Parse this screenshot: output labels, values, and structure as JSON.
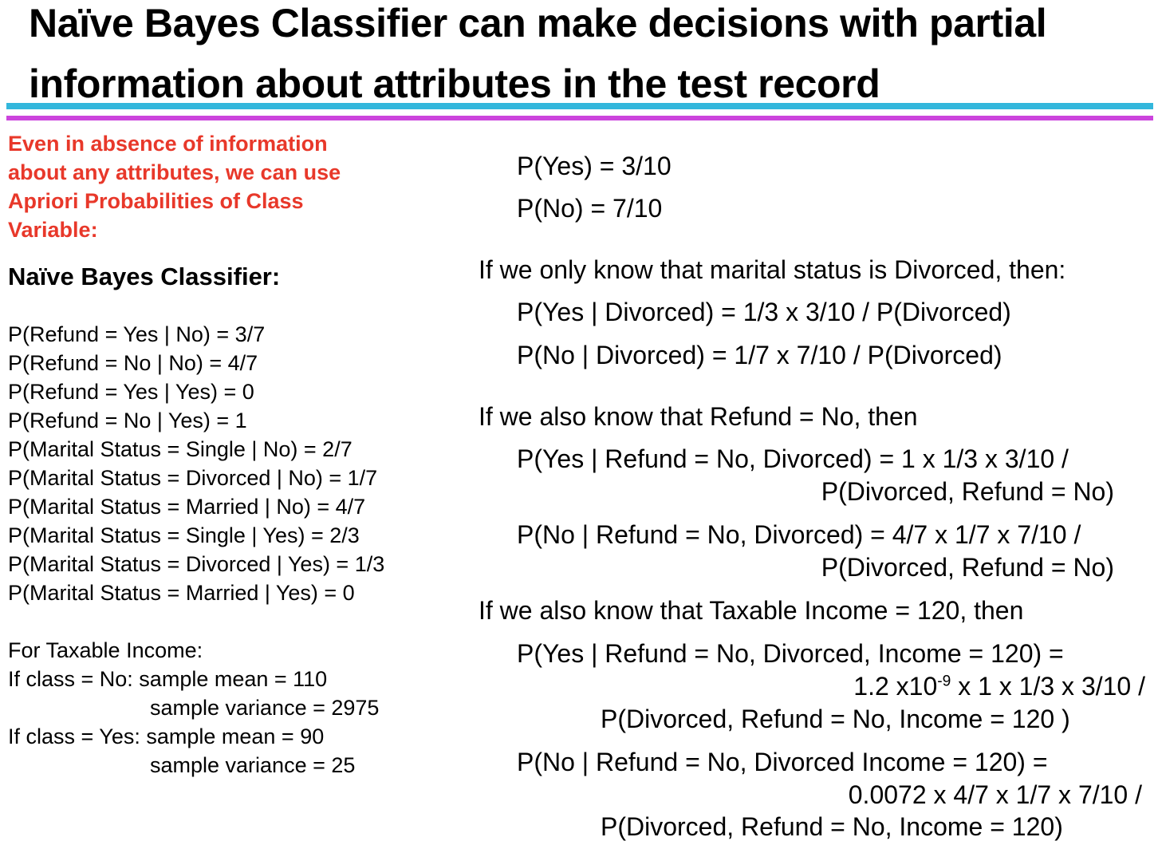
{
  "title": {
    "line1": "Naïve Bayes Classifier can make decisions with partial",
    "line2": "information about attributes in the test record"
  },
  "left": {
    "note_lines": [
      "Even in absence of information",
      "about any attributes, we can use",
      "Apriori Probabilities of Class",
      "Variable:"
    ],
    "heading": "Naïve  Bayes Classifier:",
    "probabilities": [
      "P(Refund = Yes | No) = 3/7",
      "P(Refund = No | No) = 4/7",
      "P(Refund = Yes | Yes) = 0",
      "P(Refund = No | Yes) = 1",
      "P(Marital Status = Single | No) = 2/7",
      "P(Marital Status = Divorced | No) = 1/7",
      "P(Marital Status = Married | No) = 4/7",
      "P(Marital Status = Single | Yes) = 2/3",
      "P(Marital Status = Divorced | Yes) = 1/3",
      "P(Marital Status = Married | Yes) = 0"
    ],
    "income_lines": [
      "For Taxable Income:",
      "If class = No: sample mean = 110",
      "sample variance = 2975",
      "If class = Yes: sample mean = 90",
      "sample variance = 25"
    ]
  },
  "right": {
    "prior_yes": "P(Yes) = 3/10",
    "prior_no": "P(No) = 7/10",
    "divorced_intro": "If we only know that marital status is Divorced, then:",
    "divorced_yes": "P(Yes | Divorced) = 1/3 x 3/10 / P(Divorced)",
    "divorced_no": "P(No | Divorced) = 1/7 x 7/10 / P(Divorced)",
    "refund_intro": "If we also know that Refund = No, then",
    "refund_yes_1": "P(Yes | Refund = No, Divorced) = 1 x 1/3 x 3/10 /",
    "refund_yes_2": "P(Divorced, Refund = No)",
    "refund_no_1": "P(No | Refund = No, Divorced) = 4/7 x 1/7 x 7/10 /",
    "refund_no_2": "P(Divorced, Refund = No)",
    "income_intro": "If we also know that Taxable Income = 120, then",
    "income_yes_1": "P(Yes | Refund = No, Divorced, Income = 120) =",
    "income_yes_2_a": "1.2 x10",
    "income_yes_2_exp": "-9",
    "income_yes_2_b": " x  1 x 1/3 x 3/10 /",
    "income_yes_3": "P(Divorced, Refund = No,  Income = 120 )",
    "income_no_1": "P(No | Refund = No, Divorced Income = 120) =",
    "income_no_2": "0.0072  x 4/7 x 1/7 x 7/10 /",
    "income_no_3": "P(Divorced, Refund = No, Income = 120)"
  }
}
